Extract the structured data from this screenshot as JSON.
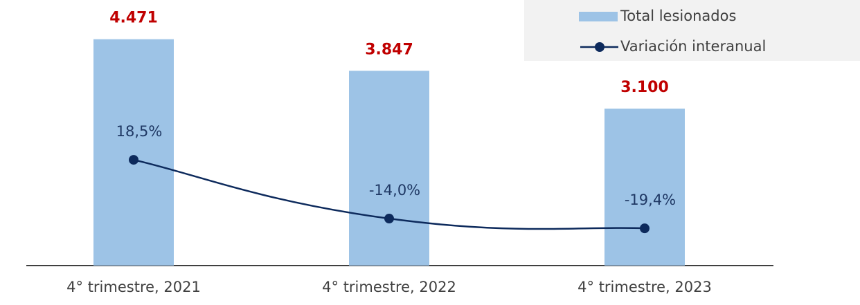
{
  "chart_data": {
    "type": "bar",
    "categories": [
      "4° trimestre, 2021",
      "4° trimestre, 2022",
      "4° trimestre, 2023"
    ],
    "series": [
      {
        "name": "Total lesionados",
        "type": "bar",
        "color": "#9dc3e6",
        "values": [
          4471,
          3847,
          3100
        ],
        "value_labels": [
          "4.471",
          "3.847",
          "3.100"
        ]
      },
      {
        "name": "Variación interanual",
        "type": "line",
        "axis": "y2",
        "color": "#0d2a5c",
        "values": [
          18.5,
          -14.0,
          -19.4
        ],
        "value_labels": [
          "18,5%",
          "-14,0%",
          "-19,4%"
        ]
      }
    ],
    "ylim": [
      0,
      5000
    ],
    "y2lim": [
      -40,
      100
    ],
    "legend": "upper right"
  }
}
